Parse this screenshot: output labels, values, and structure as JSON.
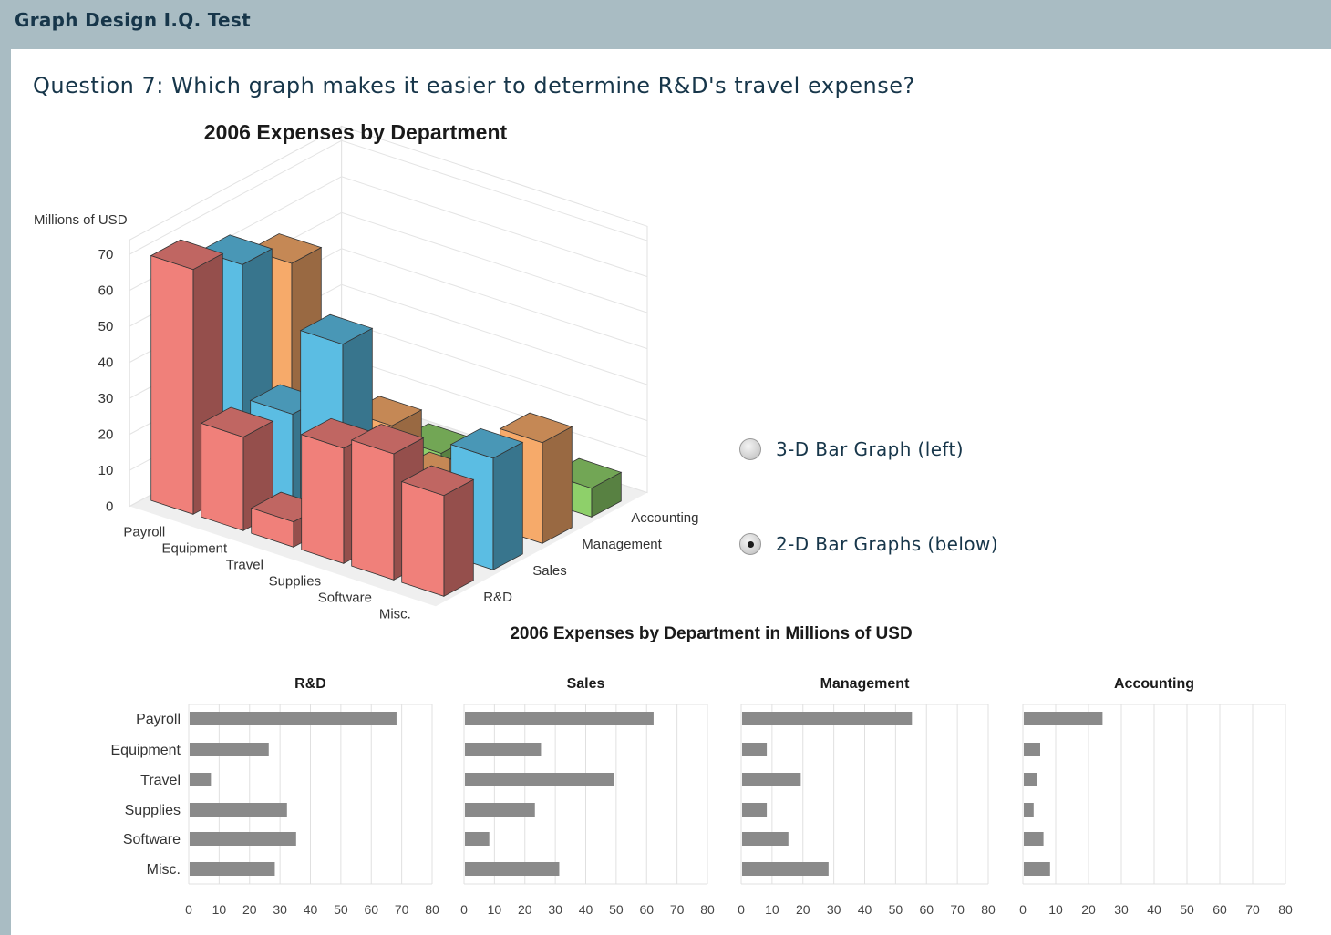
{
  "app": {
    "title": "Graph Design I.Q. Test"
  },
  "question": {
    "text": "Question 7: Which graph makes it easier to determine R&D's travel expense?"
  },
  "options": [
    {
      "label": "3-D Bar Graph (left)",
      "selected": false
    },
    {
      "label": "2-D Bar Graphs (below)",
      "selected": true
    }
  ],
  "colors": {
    "R&D": "#f0807a",
    "Sales": "#5bbde3",
    "Management": "#f6aa6a",
    "Accounting": "#8ed06a",
    "bar2d": "#8a8a8a"
  },
  "chart_data": [
    {
      "type": "bar",
      "variant": "3d",
      "title": "2006 Expenses by Department",
      "ylabel": "Millions of USD",
      "ylim": [
        0,
        70
      ],
      "yticks": [
        0,
        10,
        20,
        30,
        40,
        50,
        60,
        70
      ],
      "categories": [
        "Payroll",
        "Equipment",
        "Travel",
        "Supplies",
        "Software",
        "Misc."
      ],
      "series": [
        {
          "name": "R&D",
          "values": [
            68,
            26,
            7,
            32,
            35,
            28
          ]
        },
        {
          "name": "Sales",
          "values": [
            62,
            25,
            49,
            23,
            8,
            31
          ]
        },
        {
          "name": "Management",
          "values": [
            55,
            8,
            19,
            8,
            15,
            28
          ]
        },
        {
          "name": "Accounting",
          "values": [
            24,
            5,
            4,
            3,
            6,
            8
          ]
        }
      ]
    },
    {
      "type": "bar",
      "variant": "small-multiples-horizontal",
      "title": "2006 Expenses by Department in Millions of USD",
      "categories": [
        "Payroll",
        "Equipment",
        "Travel",
        "Supplies",
        "Software",
        "Misc."
      ],
      "xlim": [
        0,
        80
      ],
      "xticks": [
        0,
        10,
        20,
        30,
        40,
        50,
        60,
        70,
        80
      ],
      "panels": [
        {
          "name": "R&D",
          "values": [
            68,
            26,
            7,
            32,
            35,
            28
          ]
        },
        {
          "name": "Sales",
          "values": [
            62,
            25,
            49,
            23,
            8,
            31
          ]
        },
        {
          "name": "Management",
          "values": [
            55,
            8,
            19,
            8,
            15,
            28
          ]
        },
        {
          "name": "Accounting",
          "values": [
            24,
            5,
            4,
            3,
            6,
            8
          ]
        }
      ]
    }
  ]
}
